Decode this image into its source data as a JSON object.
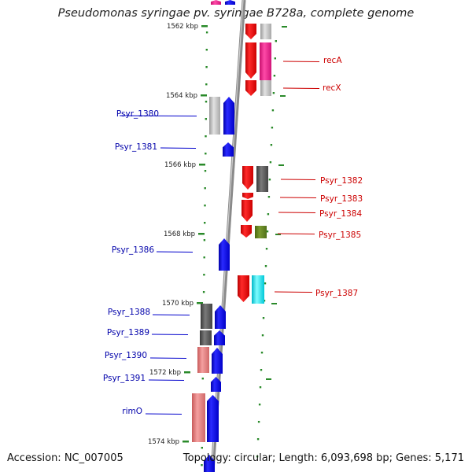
{
  "title": "Pseudomonas syringae pv. syringae B728a, complete genome",
  "footer": {
    "accession": "Accession: NC_007005",
    "topology": "Topology: circular; Length: 6,093,698 bp; Genes: 5,171"
  },
  "colors": {
    "forward_gene": "#0000ee",
    "reverse_gene": "#ee0000",
    "label_forward": "#0000aa",
    "label_reverse": "#cc0000",
    "tick": "#228822",
    "backbone": "#888888"
  },
  "scale_ticks": [
    "1562 kbp",
    "1564 kbp",
    "1566 kbp",
    "1568 kbp",
    "1570 kbp",
    "1572 kbp",
    "1574 kbp"
  ],
  "genes_left": [
    {
      "label": "Psyr_1380"
    },
    {
      "label": "Psyr_1381"
    },
    {
      "label": "Psyr_1386"
    },
    {
      "label": "Psyr_1388"
    },
    {
      "label": "Psyr_1389"
    },
    {
      "label": "Psyr_1390"
    },
    {
      "label": "Psyr_1391"
    },
    {
      "label": "rimO"
    }
  ],
  "genes_right": [
    {
      "label": "recA"
    },
    {
      "label": "recX"
    },
    {
      "label": "Psyr_1382"
    },
    {
      "label": "Psyr_1383"
    },
    {
      "label": "Psyr_1384"
    },
    {
      "label": "Psyr_1385"
    },
    {
      "label": "Psyr_1387"
    }
  ]
}
